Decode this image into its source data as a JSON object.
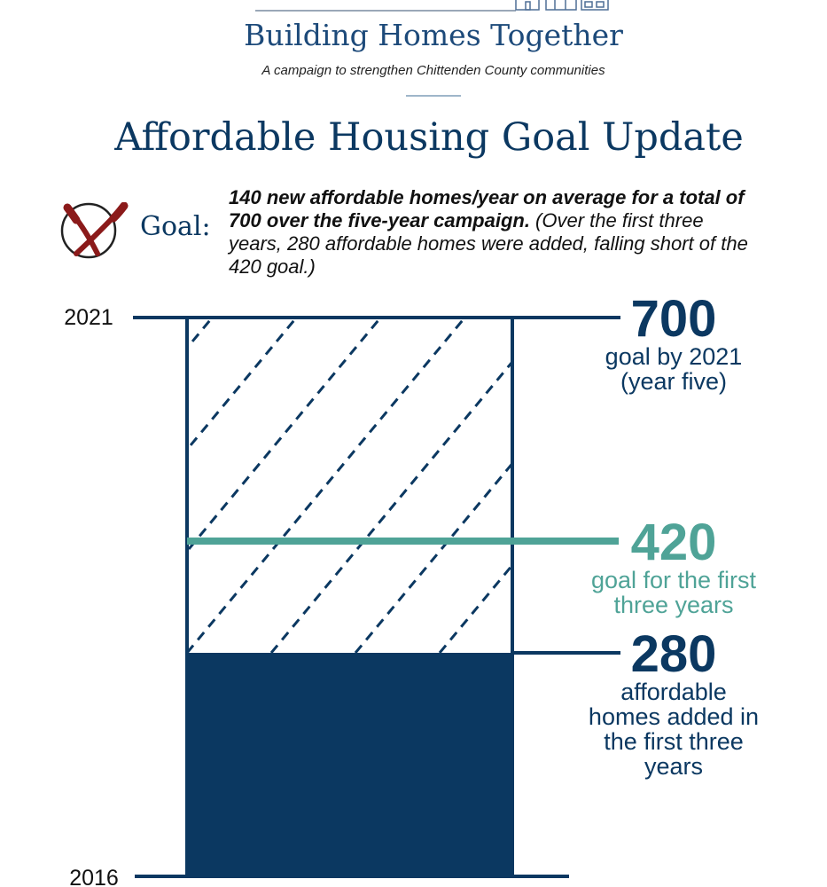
{
  "header": {
    "brand_title": "Building Homes Together",
    "tagline": "A campaign to strengthen Chittenden County communities"
  },
  "page_title": "Affordable Housing Goal Update",
  "goal": {
    "label": "Goal:",
    "statement_bold": "140 new affordable homes/year on average for a total of 700 over the five-year campaign.",
    "statement_rest": " (Over the first three years, 280 affordable homes were added, falling short of the 420 goal.)"
  },
  "colors": {
    "navy": "#0b3861",
    "teal": "#4fa397",
    "miss_red": "#8b1a1a"
  },
  "icons": {
    "goal_status": "missed-goal-x-icon",
    "logo": "houses-icon"
  },
  "chart_data": {
    "type": "bar",
    "title": "Affordable Housing Goal Update",
    "y_axis": {
      "start_label": "2016",
      "end_label": "2021"
    },
    "ylim": [
      0,
      700
    ],
    "achieved": {
      "value": 280,
      "label_lines": [
        "affordable",
        "homes added in",
        "the first three",
        "years"
      ]
    },
    "goals": [
      {
        "value": 700,
        "label_lines": [
          "goal by 2021",
          "(year five)"
        ],
        "color": "#0b3861"
      },
      {
        "value": 420,
        "label_lines": [
          "goal for the first",
          "three years"
        ],
        "color": "#4fa397"
      }
    ],
    "grid": false,
    "legend": "none"
  }
}
